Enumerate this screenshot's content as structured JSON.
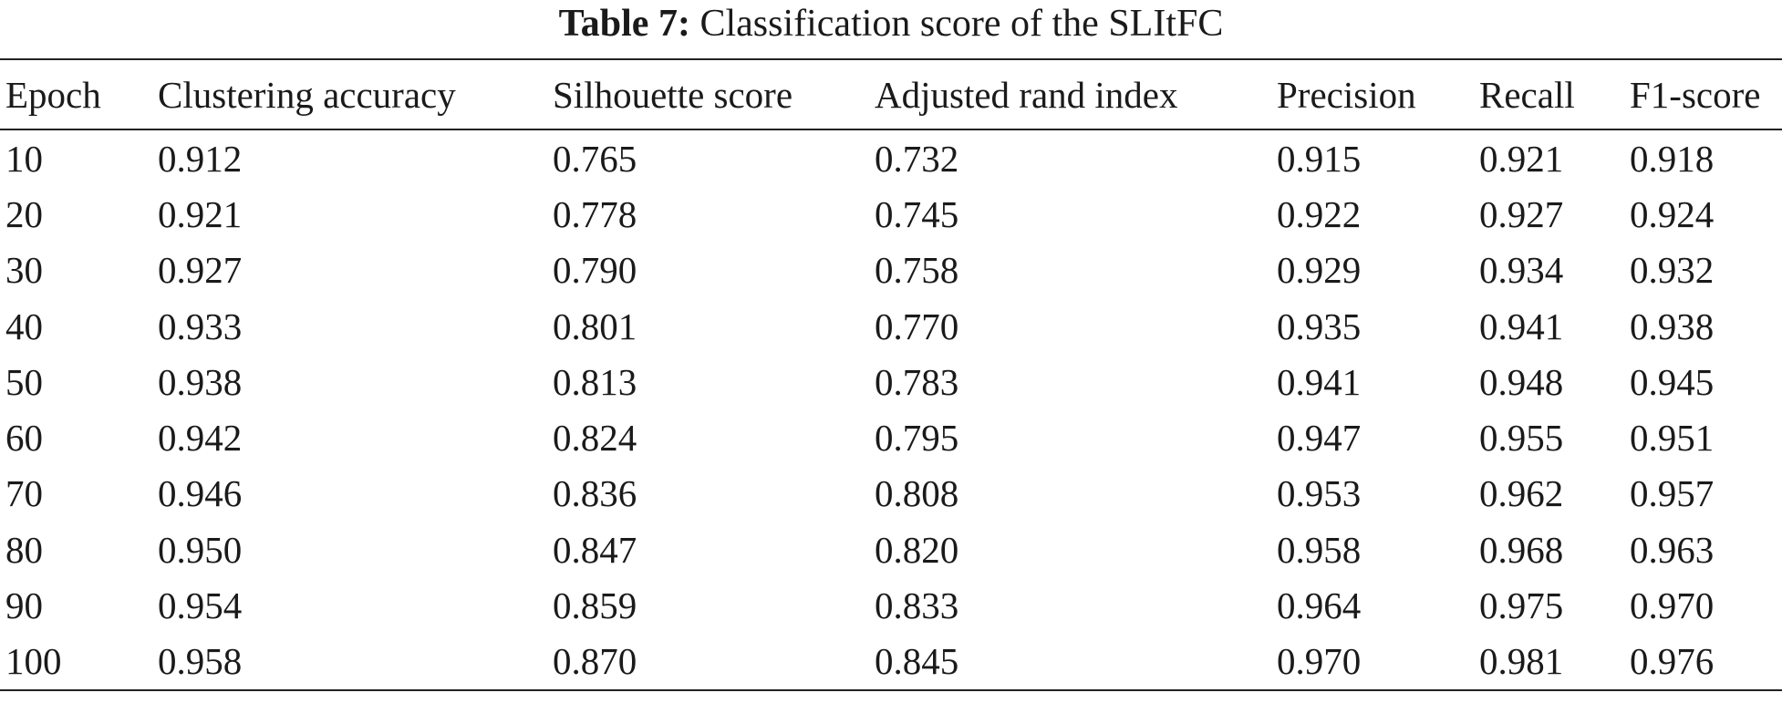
{
  "caption": {
    "label": "Table 7:",
    "text": "Classification score of the SLItFC"
  },
  "chart_data": {
    "type": "table",
    "columns": [
      "Epoch",
      "Clustering accuracy",
      "Silhouette score",
      "Adjusted rand index",
      "Precision",
      "Recall",
      "F1-score"
    ],
    "rows": [
      [
        "10",
        "0.912",
        "0.765",
        "0.732",
        "0.915",
        "0.921",
        "0.918"
      ],
      [
        "20",
        "0.921",
        "0.778",
        "0.745",
        "0.922",
        "0.927",
        "0.924"
      ],
      [
        "30",
        "0.927",
        "0.790",
        "0.758",
        "0.929",
        "0.934",
        "0.932"
      ],
      [
        "40",
        "0.933",
        "0.801",
        "0.770",
        "0.935",
        "0.941",
        "0.938"
      ],
      [
        "50",
        "0.938",
        "0.813",
        "0.783",
        "0.941",
        "0.948",
        "0.945"
      ],
      [
        "60",
        "0.942",
        "0.824",
        "0.795",
        "0.947",
        "0.955",
        "0.951"
      ],
      [
        "70",
        "0.946",
        "0.836",
        "0.808",
        "0.953",
        "0.962",
        "0.957"
      ],
      [
        "80",
        "0.950",
        "0.847",
        "0.820",
        "0.958",
        "0.968",
        "0.963"
      ],
      [
        "90",
        "0.954",
        "0.859",
        "0.833",
        "0.964",
        "0.975",
        "0.970"
      ],
      [
        "100",
        "0.958",
        "0.870",
        "0.845",
        "0.970",
        "0.981",
        "0.976"
      ]
    ]
  }
}
